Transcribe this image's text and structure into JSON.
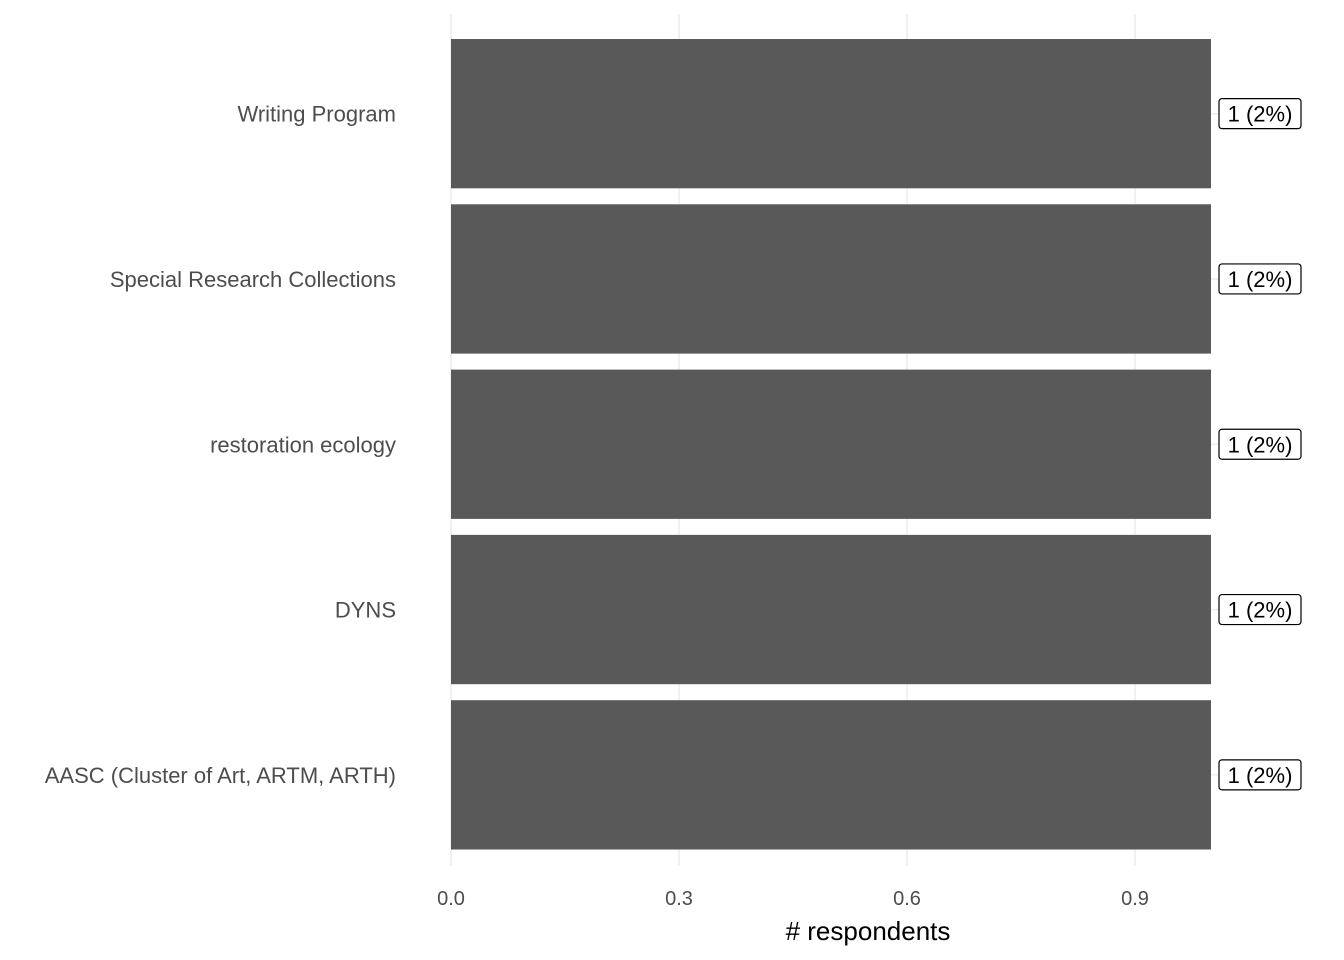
{
  "chart_data": {
    "type": "bar",
    "orientation": "horizontal",
    "categories": [
      "Writing Program",
      "Special Research Collections",
      "restoration ecology",
      "DYNS",
      "AASC (Cluster of Art, ARTM, ARTH)"
    ],
    "values": [
      1,
      1,
      1,
      1,
      1
    ],
    "data_labels": [
      "1 (2%)",
      "1 (2%)",
      "1 (2%)",
      "1 (2%)",
      "1 (2%)"
    ],
    "xlabel": "# respondents",
    "ylabel": "",
    "xlim": [
      0,
      1.0
    ],
    "x_ticks": [
      0,
      0.3,
      0.6,
      0.9
    ],
    "x_tick_labels": [
      "0.0",
      "0.3",
      "0.6",
      "0.9"
    ],
    "grid": true,
    "colors": {
      "bar": "#595959",
      "grid": "#ebebeb",
      "axis_text": "#4d4d4d"
    }
  }
}
